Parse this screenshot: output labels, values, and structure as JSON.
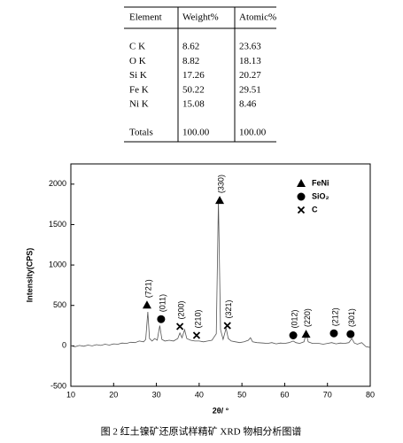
{
  "table": {
    "header": [
      "Element",
      "Weight%",
      "Atomic%"
    ],
    "rows": [
      [
        "C K",
        "8.62",
        "23.63"
      ],
      [
        "O K",
        "8.82",
        "18.13"
      ],
      [
        "Si K",
        "17.26",
        "20.27"
      ],
      [
        "Fe K",
        "50.22",
        "29.51"
      ],
      [
        "Ni K",
        "15.08",
        "8.46"
      ]
    ],
    "totals": [
      "Totals",
      "100.00",
      "100.00"
    ]
  },
  "chart_data": {
    "type": "line",
    "xlabel": "2θ/ °",
    "ylabel": "Intensity(CPS)",
    "xlim": [
      10,
      80
    ],
    "xticks": [
      10,
      20,
      30,
      40,
      50,
      60,
      70,
      80
    ],
    "ylim": [
      -500,
      2250
    ],
    "yticks": [
      -500,
      0,
      500,
      1000,
      1500,
      2000
    ],
    "x": [
      10,
      11,
      12,
      13,
      14,
      15,
      16,
      17,
      18,
      19,
      20,
      21,
      22,
      23,
      24,
      25,
      26,
      27,
      27.5,
      28,
      28.4,
      29,
      29.6,
      30.2,
      30.8,
      31.3,
      32,
      33,
      34,
      35,
      35.5,
      36,
      36.6,
      37.1,
      38,
      39,
      40,
      41,
      42,
      43,
      44,
      44.5,
      45,
      45.6,
      46.3,
      46.8,
      47.5,
      48.5,
      49.5,
      50.5,
      51.5,
      52,
      52.5,
      53.5,
      55,
      56,
      57,
      58,
      59,
      60,
      61,
      62,
      62.6,
      63.5,
      64.5,
      65,
      65.5,
      66.5,
      68,
      69,
      70,
      71,
      72,
      73,
      74,
      75,
      75.7,
      76.3,
      77,
      78,
      79,
      80
    ],
    "series": [
      {
        "color": "#555555",
        "values": [
          0,
          -10,
          5,
          -5,
          10,
          0,
          15,
          5,
          20,
          10,
          25,
          20,
          35,
          30,
          45,
          40,
          60,
          50,
          80,
          420,
          90,
          60,
          90,
          70,
          250,
          80,
          60,
          70,
          60,
          90,
          160,
          100,
          200,
          90,
          70,
          60,
          60,
          50,
          60,
          70,
          150,
          1800,
          200,
          80,
          220,
          90,
          60,
          50,
          40,
          50,
          70,
          100,
          50,
          40,
          35,
          30,
          40,
          25,
          35,
          30,
          40,
          60,
          40,
          30,
          50,
          150,
          50,
          30,
          30,
          20,
          30,
          40,
          25,
          35,
          30,
          40,
          90,
          35,
          20,
          40,
          -10,
          -20
        ]
      }
    ],
    "legend": {
      "position": "upper right",
      "entries": [
        {
          "name": "FeNi",
          "marker": "triangle"
        },
        {
          "name": "SiO₂",
          "marker": "circle"
        },
        {
          "name": "C",
          "marker": "cross"
        }
      ]
    },
    "annotations": [
      {
        "x": 27.8,
        "y": 505,
        "marker": "triangle",
        "label": "(721)"
      },
      {
        "x": 31.1,
        "y": 330,
        "marker": "circle",
        "label": "(011)"
      },
      {
        "x": 35.5,
        "y": 240,
        "marker": "cross",
        "label": "(200)"
      },
      {
        "x": 39.4,
        "y": 130,
        "marker": "cross",
        "label": "(210)"
      },
      {
        "x": 44.8,
        "y": 1800,
        "marker": "triangle",
        "label": "(330)"
      },
      {
        "x": 46.6,
        "y": 250,
        "marker": "cross",
        "label": "(321)"
      },
      {
        "x": 62,
        "y": 130,
        "marker": "circle",
        "label": "(012)"
      },
      {
        "x": 65,
        "y": 145,
        "marker": "triangle",
        "label": "(220)"
      },
      {
        "x": 71.5,
        "y": 155,
        "marker": "circle",
        "label": "(212)"
      },
      {
        "x": 75.4,
        "y": 145,
        "marker": "circle",
        "label": "(301)"
      }
    ]
  },
  "caption": "图 2 红土镍矿还原试样精矿 XRD 物相分析图谱"
}
